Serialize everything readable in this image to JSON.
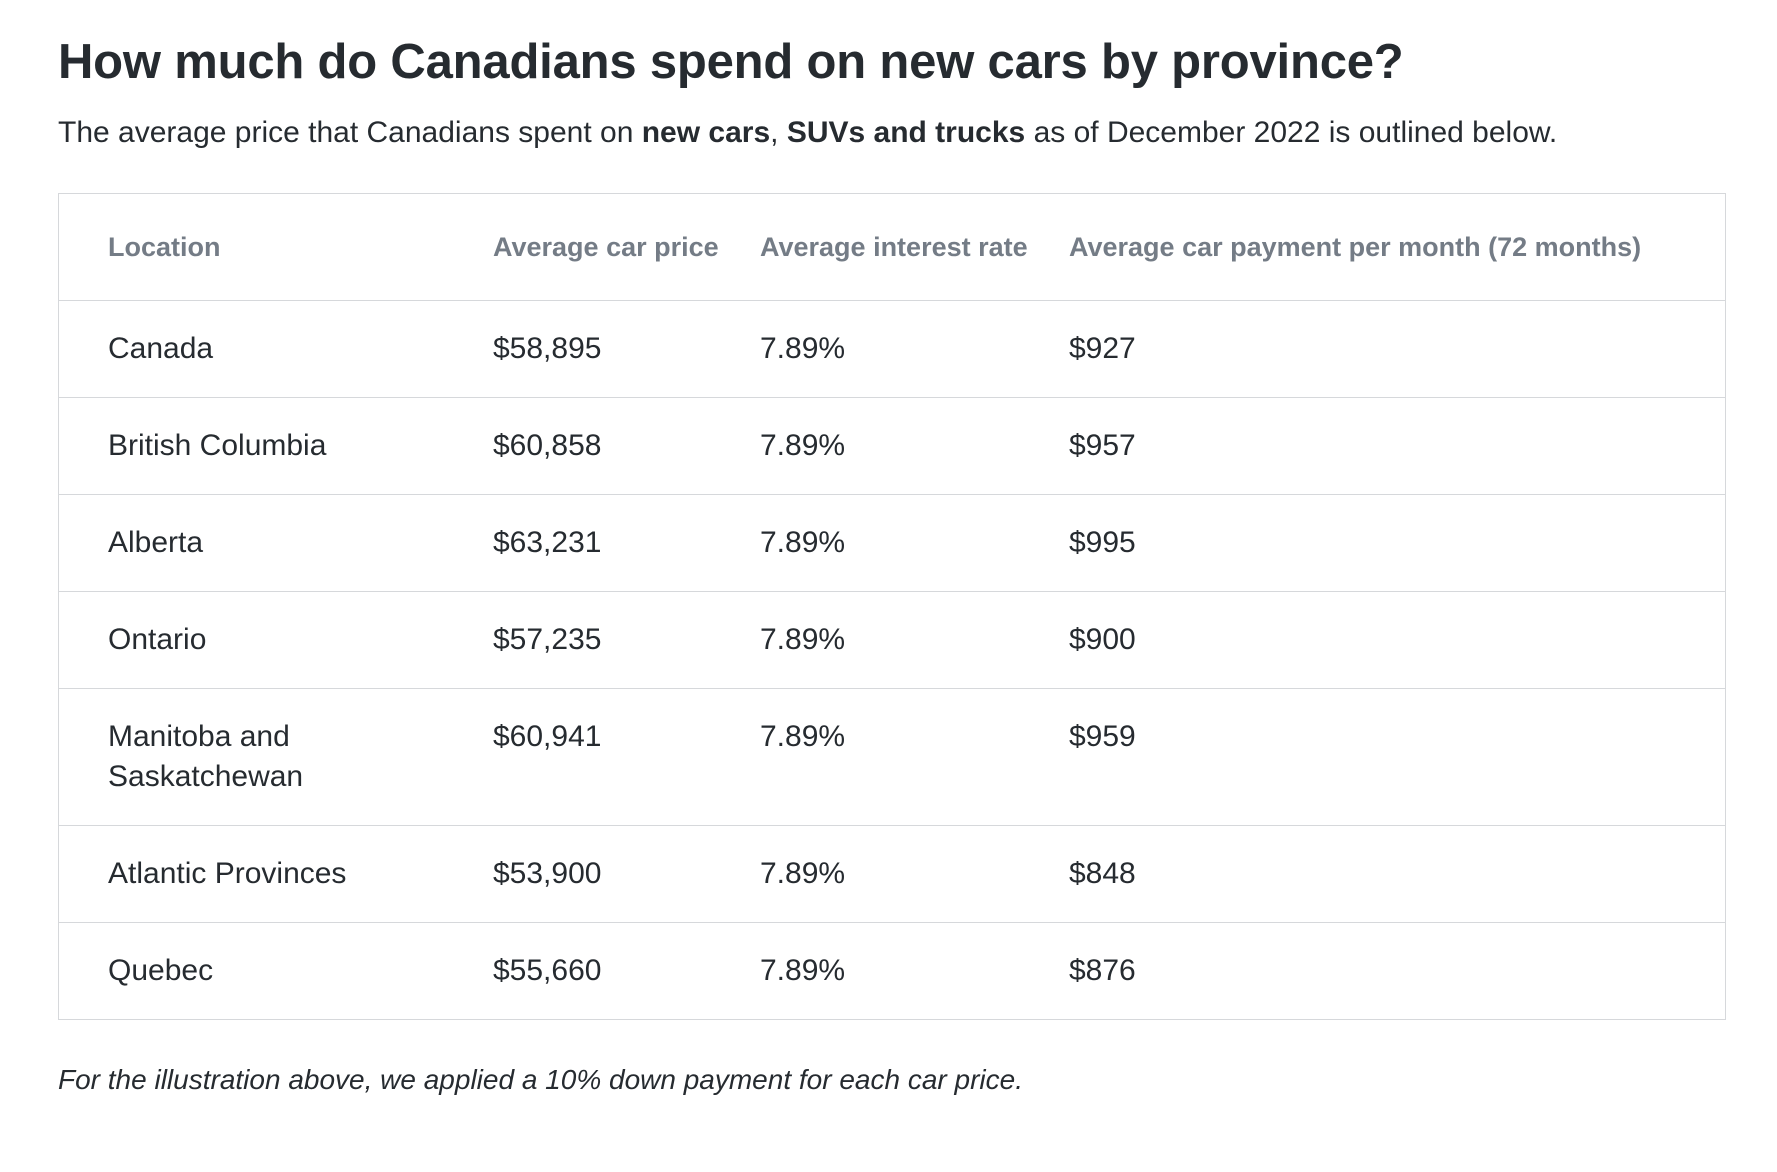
{
  "title": "How much do Canadians spend on new cars by province?",
  "intro": {
    "part1": "The average price that Canadians spent on ",
    "bold1": "new cars",
    "part2": ", ",
    "bold2": "SUVs and trucks",
    "part3": " as of December 2022 is outlined below."
  },
  "table": {
    "headers": [
      "Location",
      "Average car price",
      "Average interest rate",
      "Average car payment per month (72 months)"
    ],
    "rows": [
      [
        "Canada",
        "$58,895",
        "7.89%",
        "$927"
      ],
      [
        "British Columbia",
        "$60,858",
        "7.89%",
        "$957"
      ],
      [
        "Alberta",
        "$63,231",
        "7.89%",
        "$995"
      ],
      [
        "Ontario",
        "$57,235",
        "7.89%",
        "$900"
      ],
      [
        "Manitoba and Saskatchewan",
        "$60,941",
        "7.89%",
        "$959"
      ],
      [
        "Atlantic Provinces",
        "$53,900",
        "7.89%",
        "$848"
      ],
      [
        "Quebec",
        "$55,660",
        "7.89%",
        "$876"
      ]
    ]
  },
  "footnote": "For the illustration above, we applied a 10% down payment for each car price."
}
